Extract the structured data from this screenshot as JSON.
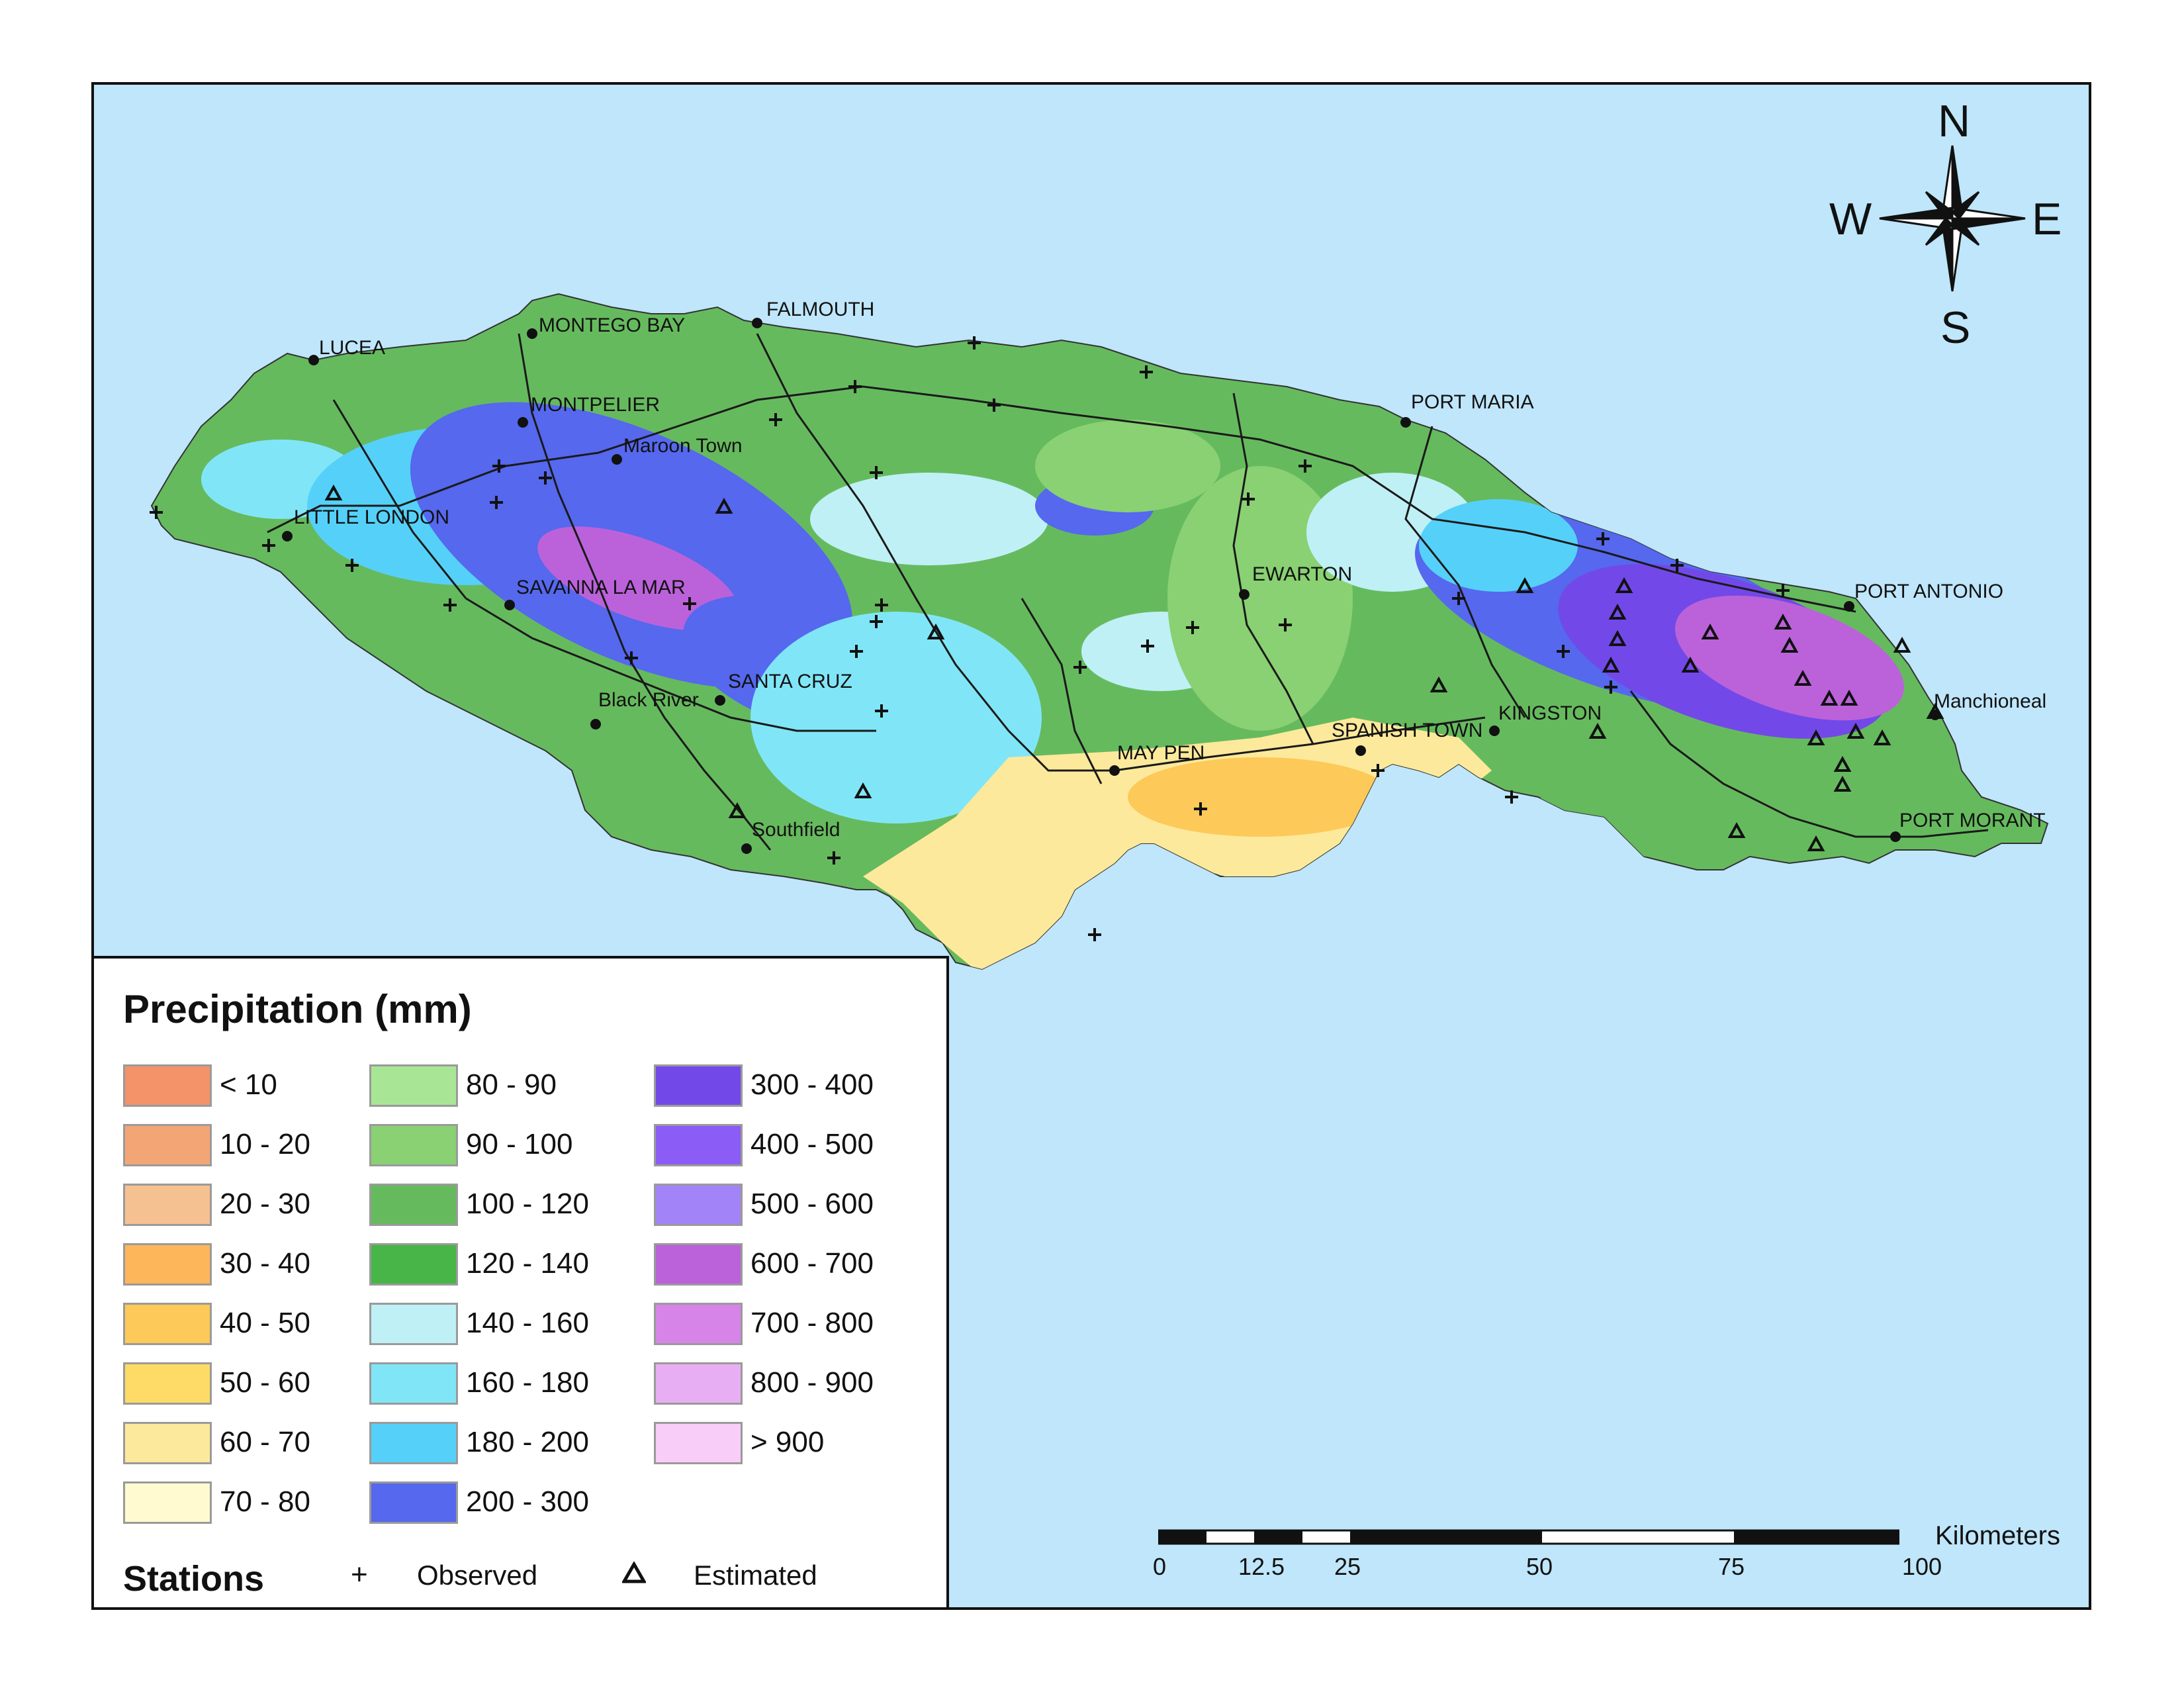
{
  "legend": {
    "title": "Precipitation (mm)",
    "classes": [
      {
        "label": "< 10",
        "color": "#f4926a"
      },
      {
        "label": "10 - 20",
        "color": "#f4a575"
      },
      {
        "label": "20 - 30",
        "color": "#f6c190"
      },
      {
        "label": "30 - 40",
        "color": "#fdb65a"
      },
      {
        "label": "40 - 50",
        "color": "#fdc958"
      },
      {
        "label": "50 - 60",
        "color": "#fddb66"
      },
      {
        "label": "60 - 70",
        "color": "#fde99b"
      },
      {
        "label": "70 - 80",
        "color": "#fffacf"
      },
      {
        "label": "80 - 90",
        "color": "#a8e696"
      },
      {
        "label": "90 - 100",
        "color": "#89d172"
      },
      {
        "label": "100 - 120",
        "color": "#66ba5e"
      },
      {
        "label": "120 - 140",
        "color": "#47b547"
      },
      {
        "label": "140 - 160",
        "color": "#bff0f5"
      },
      {
        "label": "160 - 180",
        "color": "#80e6f7"
      },
      {
        "label": "180 - 200",
        "color": "#55d1f9"
      },
      {
        "label": "200 - 300",
        "color": "#5568ee"
      },
      {
        "label": "300 - 400",
        "color": "#7249e8"
      },
      {
        "label": "400 - 500",
        "color": "#8b5cf6"
      },
      {
        "label": "500 - 600",
        "color": "#a383f8"
      },
      {
        "label": "600 - 700",
        "color": "#bb62da"
      },
      {
        "label": "700 - 800",
        "color": "#d784e8"
      },
      {
        "label": "800 - 900",
        "color": "#e8aef4"
      },
      {
        "label": "> 900",
        "color": "#f8cdf8"
      }
    ],
    "stations_label": "Stations",
    "observed_label": "Observed",
    "estimated_label": "Estimated"
  },
  "compass": {
    "n": "N",
    "e": "E",
    "s": "S",
    "w": "W"
  },
  "scalebar": {
    "unit": "Kilometers",
    "ticks": [
      "0",
      "12.5",
      "25",
      "50",
      "75",
      "100"
    ]
  },
  "places": {
    "lucea": "LUCEA",
    "montego_bay": "MONTEGO BAY",
    "falmouth": "FALMOUTH",
    "montpelier": "MONTPELIER",
    "maroon_town": "Maroon Town",
    "little_london": "LITTLE LONDON",
    "savanna_la_mar": "SAVANNA LA MAR",
    "black_river": "Black River",
    "santa_cruz": "SANTA CRUZ",
    "southfield": "Southfield",
    "may_pen": "MAY PEN",
    "spanish_town": "SPANISH TOWN",
    "kingston": "KINGSTON",
    "ewarton": "EWARTON",
    "port_maria": "PORT MARIA",
    "port_antonio": "PORT ANTONIO",
    "manchioneal": "Manchioneal",
    "port_morant": "PORT MORANT"
  }
}
